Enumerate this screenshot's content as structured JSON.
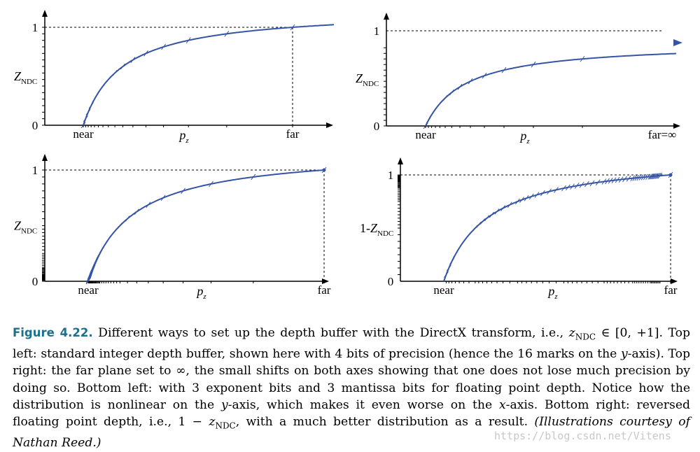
{
  "figure": {
    "panels": [
      {
        "id": "top-left",
        "y_tick_top": "1",
        "y_tick_bottom": "0",
        "y_label_main": "Z",
        "y_label_sub": "NDC",
        "x_labels": [
          "near",
          "p",
          "far"
        ],
        "x_label_p_sub": "z",
        "y_marks_count": 16
      },
      {
        "id": "top-right",
        "y_tick_top": "1",
        "y_tick_bottom": "0",
        "y_label_main": "Z",
        "y_label_sub": "NDC",
        "x_labels": [
          "near",
          "p",
          "far=∞"
        ],
        "x_label_p_sub": "z",
        "y_marks_count": 16
      },
      {
        "id": "bottom-left",
        "y_tick_top": "1",
        "y_tick_bottom": "0",
        "y_label_main": "Z",
        "y_label_sub": "NDC",
        "x_labels": [
          "near",
          "p",
          "far"
        ],
        "x_label_p_sub": "z"
      },
      {
        "id": "bottom-right",
        "y_tick_top": "1",
        "y_tick_bottom": "0",
        "y_label_prefix": "1-",
        "y_label_main": "Z",
        "y_label_sub": "NDC",
        "x_labels": [
          "near",
          "p",
          "far"
        ],
        "x_label_p_sub": "z"
      }
    ],
    "colors": {
      "curve": "#3554a6",
      "axis": "#000000"
    }
  },
  "caption": {
    "label": "Figure 4.22.",
    "part1": "Different ways to set up the depth buffer with the DirectX transform, i.e., ",
    "math_in": "z",
    "math_in_sub": "NDC",
    "math_range": " ∈ [0, +1]. ",
    "part2": "Top left: standard integer depth buffer, shown here with 4 bits of precision (hence the 16 marks on the ",
    "y_var": "y",
    "part3": "-axis). Top right: the far plane set to ∞, the small shifts on both axes showing that one does not lose much precision by doing so. Bottom left: with 3 exponent bits and 3 mantissa bits for floating point depth. Notice how the distribution is nonlinear on the ",
    "y_var2": "y",
    "part4": "-axis, which makes it even worse on the ",
    "x_var": "x",
    "part5": "-axis. Bottom right: reversed floating point depth, i.e., 1 − ",
    "math2": "z",
    "math2_sub": "NDC",
    "part6": ", with a much better distribution as a result. ",
    "credit": "(Illustrations courtesy of Nathan Reed.)"
  },
  "watermark": "https://blog.csdn.net/Vitens"
}
